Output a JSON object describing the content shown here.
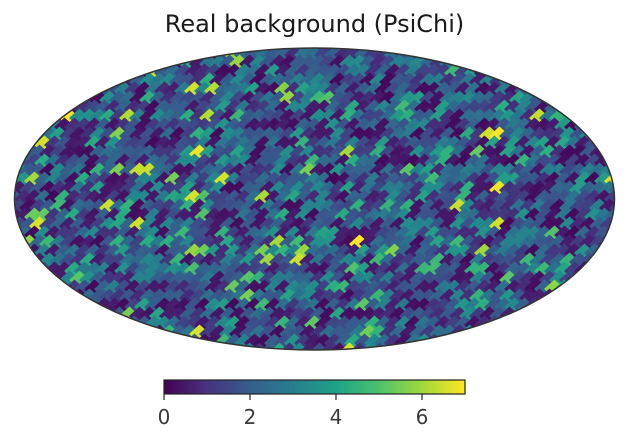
{
  "chart_data": {
    "type": "heatmap",
    "title": "Real background (PsiChi)",
    "projection": "mollweide",
    "colormap": "viridis",
    "grid": false,
    "colorbar": {
      "orientation": "horizontal",
      "placement": "bottom",
      "range": [
        0,
        7
      ],
      "ticks": [
        0,
        2,
        4,
        6
      ],
      "tick_labels": [
        "0",
        "2",
        "4",
        "6"
      ]
    },
    "value_range": [
      0,
      7
    ]
  }
}
